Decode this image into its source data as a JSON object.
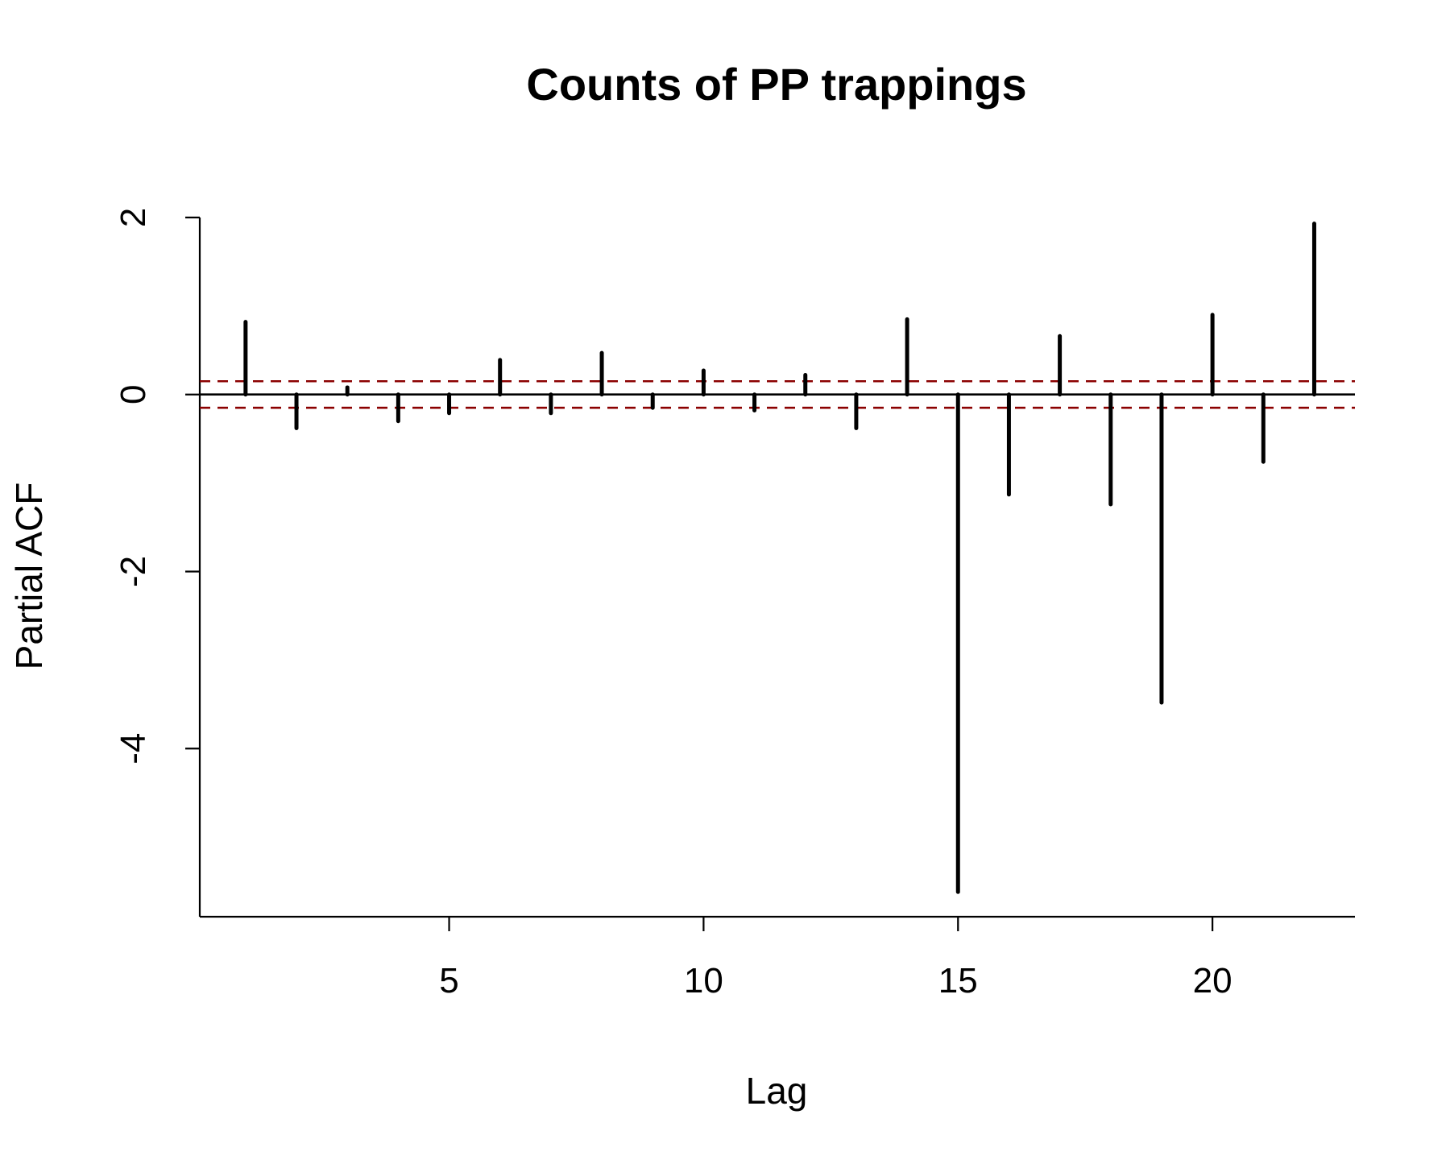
{
  "chart_data": {
    "type": "bar",
    "title": "Counts of PP trappings",
    "xlabel": "Lag",
    "ylabel": "Partial ACF",
    "x": [
      1,
      2,
      3,
      4,
      5,
      6,
      7,
      8,
      9,
      10,
      11,
      12,
      13,
      14,
      15,
      16,
      17,
      18,
      19,
      20,
      21,
      22
    ],
    "values": [
      0.82,
      -0.38,
      0.08,
      -0.3,
      -0.21,
      0.39,
      -0.21,
      0.47,
      -0.15,
      0.27,
      -0.18,
      0.22,
      -0.38,
      0.85,
      -5.62,
      -1.13,
      0.66,
      -1.24,
      -3.48,
      0.9,
      -0.76,
      1.93
    ],
    "xlim": [
      0.1,
      22.8
    ],
    "ylim": [
      -5.9,
      2.2
    ],
    "xticks": [
      5,
      10,
      15,
      20
    ],
    "xtick_labels": [
      "5",
      "10",
      "15",
      "20"
    ],
    "yticks": [
      -4,
      -2,
      0,
      2
    ],
    "ytick_labels": [
      "-4",
      "-2",
      "0",
      "2"
    ],
    "ci_bounds": [
      0.15,
      -0.15
    ],
    "grid": false,
    "colors": {
      "bars": "#000000",
      "zero_line": "#000000",
      "ci_lines": "#8b0000",
      "axes": "#000000",
      "background": "#ffffff"
    }
  }
}
